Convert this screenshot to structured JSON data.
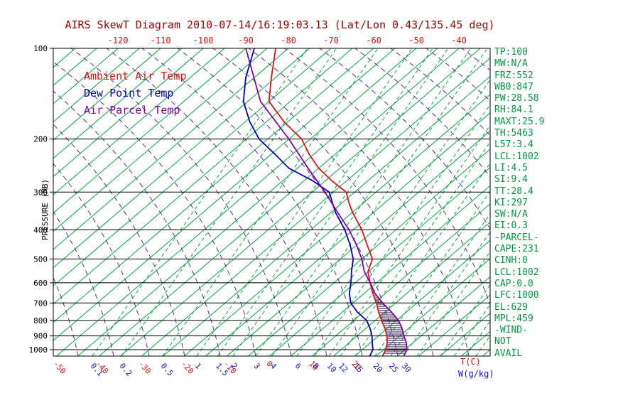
{
  "title": "AIRS SkewT Diagram 2010-07-14/16:19:03.13 (Lat/Lon 0.43/135.45 deg)",
  "axes": {
    "pressure_label": "PRESSURE (MB)",
    "temp_label": "T(C)",
    "mixing_label": "W(g/kg)",
    "pressure_ticks": [
      100,
      200,
      300,
      400,
      500,
      600,
      700,
      800,
      900,
      1000
    ],
    "top_temp_ticks": [
      -120,
      -110,
      -100,
      -90,
      -80,
      -70,
      -60,
      -50,
      -40
    ],
    "bottom_temp_ticks": [
      -50,
      -40,
      -30,
      -20,
      -10,
      0,
      10,
      20
    ],
    "pressure_range_mb": [
      100,
      1050
    ],
    "temperature_unit": "C",
    "pressure_unit": "MB"
  },
  "legend": [
    {
      "label": "Ambient Air Temp",
      "color": "#dd1111"
    },
    {
      "label": "Dew Point Temp",
      "color": "#0000bb"
    },
    {
      "label": "Air Parcel Temp",
      "color": "#8800aa"
    }
  ],
  "stats": [
    "TP:100",
    "MW:N/A",
    "FRZ:552",
    "WB0:847",
    "PW:28.58",
    "RH:84.1",
    "MAXT:25.9",
    "TH:5463",
    "L57:3.4",
    "LCL:1002",
    "LI:4.5",
    "SI:9.4",
    "TT:28.4",
    "KI:297",
    "SW:N/A",
    "EI:0.3",
    "-PARCEL-",
    "CAPE:231",
    "CINH:0",
    "LCL:1002",
    "CAP:0.0",
    "LFC:1000",
    "EL:629",
    "MPL:459",
    "-WIND-",
    "NOT",
    "AVAIL"
  ],
  "chart_data": {
    "type": "line",
    "subtype": "skewt-log-p",
    "x_axis": "temperature (C, skewed)",
    "y_axis": "pressure (MB, log scale)",
    "series": [
      {
        "name": "Ambient Air Temp",
        "color": "#dd1111",
        "points": [
          [
            100,
            -83
          ],
          [
            125,
            -76
          ],
          [
            150,
            -70
          ],
          [
            175,
            -61
          ],
          [
            200,
            -52
          ],
          [
            225,
            -46
          ],
          [
            250,
            -40
          ],
          [
            275,
            -33.5
          ],
          [
            300,
            -27
          ],
          [
            325,
            -23.5
          ],
          [
            350,
            -20
          ],
          [
            400,
            -13
          ],
          [
            450,
            -7.5
          ],
          [
            500,
            -2.5
          ],
          [
            552,
            0
          ],
          [
            600,
            3.5
          ],
          [
            650,
            7
          ],
          [
            700,
            10.5
          ],
          [
            750,
            13.5
          ],
          [
            800,
            16.5
          ],
          [
            850,
            19.5
          ],
          [
            900,
            22
          ],
          [
            950,
            24
          ],
          [
            1000,
            25.5
          ],
          [
            1050,
            26.5
          ]
        ]
      },
      {
        "name": "Dew Point Temp",
        "color": "#0000bb",
        "points": [
          [
            100,
            -88
          ],
          [
            125,
            -82
          ],
          [
            150,
            -76
          ],
          [
            175,
            -69
          ],
          [
            200,
            -62
          ],
          [
            225,
            -54
          ],
          [
            250,
            -47
          ],
          [
            275,
            -38
          ],
          [
            300,
            -31
          ],
          [
            350,
            -24
          ],
          [
            400,
            -17
          ],
          [
            450,
            -11.5
          ],
          [
            500,
            -7
          ],
          [
            550,
            -4
          ],
          [
            600,
            -1
          ],
          [
            650,
            1.5
          ],
          [
            700,
            4.5
          ],
          [
            750,
            8.5
          ],
          [
            800,
            13
          ],
          [
            850,
            16
          ],
          [
            900,
            18.5
          ],
          [
            950,
            20.5
          ],
          [
            1000,
            22.5
          ],
          [
            1050,
            23.5
          ]
        ]
      },
      {
        "name": "Air Parcel Temp",
        "color": "#8800aa",
        "points": [
          [
            100,
            -90
          ],
          [
            150,
            -72
          ],
          [
            200,
            -55
          ],
          [
            250,
            -42.5
          ],
          [
            300,
            -32
          ],
          [
            350,
            -23.5
          ],
          [
            400,
            -16
          ],
          [
            450,
            -10
          ],
          [
            500,
            -5
          ],
          [
            550,
            -1
          ],
          [
            600,
            3.5
          ],
          [
            650,
            7.5
          ],
          [
            700,
            12
          ],
          [
            750,
            16.5
          ],
          [
            800,
            20.5
          ],
          [
            850,
            23.5
          ],
          [
            900,
            26
          ],
          [
            950,
            28.5
          ],
          [
            1000,
            30.5
          ],
          [
            1050,
            31.5
          ]
        ]
      }
    ],
    "cape_region": {
      "from_mb": 629,
      "to_mb": 1050,
      "between": [
        "Ambient Air Temp",
        "Air Parcel Temp"
      ],
      "hatch_color": "#2d004d"
    },
    "isotherms": {
      "min": -160,
      "max": 50,
      "step": 5,
      "color": "#00aa44"
    },
    "mixing_ratio_lines": {
      "values": [
        0.1,
        0.2,
        0.5,
        1,
        1.5,
        2,
        3,
        4,
        6,
        8,
        10,
        12,
        15,
        20,
        25,
        30
      ],
      "dewpoint_at_1000mb": [
        -41.6,
        -34.8,
        -25.1,
        -17.1,
        -12.2,
        -8.6,
        -3.3,
        0.6,
        6.4,
        10.5,
        13.9,
        16.6,
        20.1,
        24.7,
        28.4,
        31.4
      ],
      "extra_unlabeled_dewpoints": [
        34.6,
        40.1,
        43.3,
        46.0,
        48.4
      ],
      "color": "#00aa44"
    },
    "dry_adiabats": {
      "color": "#552d90"
    },
    "pressure_lines": [
      100,
      200,
      300,
      400,
      500,
      600,
      700,
      800,
      900,
      1000
    ]
  },
  "colors": {
    "background": "#ffffff",
    "axis": "#000000",
    "title": "#a40000",
    "red_label": "#dd1111",
    "blue_label": "#1515dd",
    "stats_text": "#009944"
  }
}
